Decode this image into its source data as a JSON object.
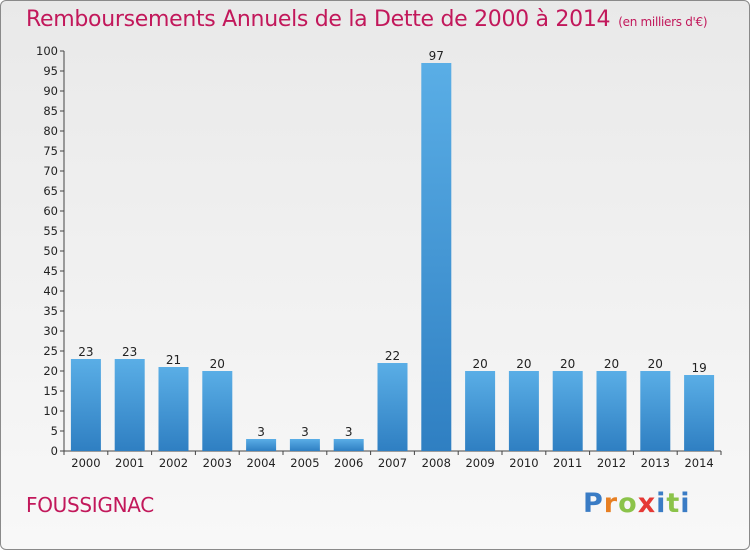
{
  "chart_data": {
    "type": "bar",
    "title": "Remboursements Annuels de la Dette de 2000 à 2014",
    "unit_note": "(en milliers d'€)",
    "categories": [
      "2000",
      "2001",
      "2002",
      "2003",
      "2004",
      "2005",
      "2006",
      "2007",
      "2008",
      "2009",
      "2010",
      "2011",
      "2012",
      "2013",
      "2014"
    ],
    "values": [
      23,
      23,
      21,
      20,
      3,
      3,
      3,
      22,
      97,
      20,
      20,
      20,
      20,
      20,
      19
    ],
    "data_labels": [
      "23",
      "23",
      "21",
      "20",
      "3",
      "3",
      "3",
      "22",
      "97",
      "20",
      "20",
      "20",
      "20",
      "20",
      "19"
    ],
    "ylim": [
      0,
      100
    ],
    "yticks": [
      0,
      5,
      10,
      15,
      20,
      25,
      30,
      35,
      40,
      45,
      50,
      55,
      60,
      65,
      70,
      75,
      80,
      85,
      90,
      95,
      100
    ],
    "grid": false,
    "bar_color_top": "#5aaee6",
    "bar_color_bottom": "#2f7fc2"
  },
  "footer": {
    "place": "FOUSSIGNAC",
    "logo_letters": [
      "P",
      "r",
      "o",
      "x",
      "i",
      "t",
      "i"
    ]
  },
  "colors": {
    "title": "#c2185b",
    "axis": "#444444"
  }
}
